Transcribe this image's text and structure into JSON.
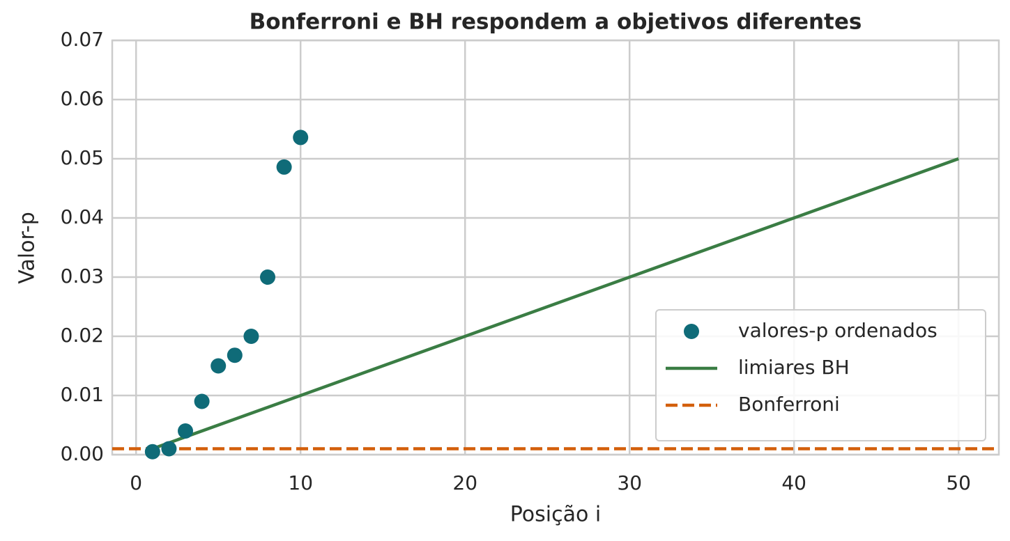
{
  "chart_data": {
    "type": "scatter",
    "title": "Bonferroni e BH respondem a objetivos diferentes",
    "xlabel": "Posição i",
    "ylabel": "Valor-p",
    "xlim": [
      -1.45,
      52.45
    ],
    "ylim": [
      0,
      0.07
    ],
    "xticks": [
      0,
      10,
      20,
      30,
      40,
      50
    ],
    "yticks": [
      {
        "value": 0,
        "label": "0.00"
      },
      0.01,
      0.02,
      0.03,
      0.04,
      0.05,
      0.06,
      0.07
    ],
    "grid": true,
    "legend": "lower right",
    "series": [
      {
        "name": "valores-p ordenados",
        "type": "scatter",
        "color": "#0f6b78",
        "x": [
          1,
          2,
          3,
          4,
          5,
          6,
          7,
          8,
          9,
          10
        ],
        "values": [
          0.0005,
          0.001,
          0.004,
          0.009,
          0.015,
          0.0168,
          0.02,
          0.03,
          0.0486,
          0.0536
        ]
      },
      {
        "name": "limiares BH",
        "type": "line",
        "color": "#3a7d44",
        "x": [
          1,
          50
        ],
        "values": [
          0.001,
          0.05
        ]
      },
      {
        "name": "Bonferroni",
        "type": "hline",
        "color": "#d35f0b",
        "value": 0.001,
        "dashed": true
      }
    ]
  }
}
